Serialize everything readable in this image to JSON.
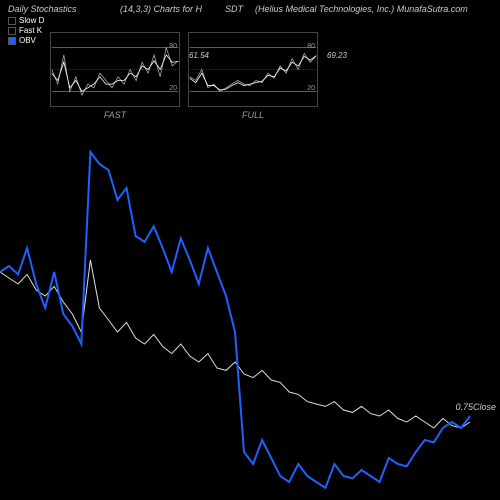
{
  "header": {
    "title_left": "Daily Stochastics",
    "title_mid": "(14,3,3) Charts for H",
    "ticker": "SDT",
    "company": "(Helius Medical Technologies, Inc.) MunafaSutra.com"
  },
  "legend": {
    "slow_d": "Slow D",
    "fast_k": "Fast K",
    "obv": "OBV"
  },
  "colors": {
    "background": "#000000",
    "obv_line": "#2060ff",
    "price_line": "#dddddd",
    "grid": "#555555",
    "stoch_band": "#c09030",
    "text": "#cccccc"
  },
  "mini_fast": {
    "label": "FAST",
    "value": "61.54",
    "ymin": 0,
    "ymax": 100,
    "bands": [
      20,
      80
    ],
    "line1": [
      50,
      30,
      70,
      20,
      40,
      15,
      30,
      25,
      45,
      35,
      25,
      40,
      30,
      50,
      35,
      60,
      45,
      70,
      40,
      80,
      55,
      62
    ],
    "line2": [
      45,
      35,
      60,
      25,
      35,
      20,
      25,
      30,
      40,
      30,
      30,
      35,
      35,
      45,
      40,
      55,
      50,
      62,
      50,
      70,
      60,
      61
    ]
  },
  "mini_full": {
    "label": "FULL",
    "value": "69.23",
    "ymin": 0,
    "ymax": 100,
    "bands": [
      20,
      80
    ],
    "line1": [
      40,
      35,
      50,
      25,
      30,
      20,
      25,
      30,
      35,
      30,
      28,
      35,
      32,
      45,
      38,
      55,
      45,
      65,
      50,
      72,
      60,
      69
    ],
    "line2": [
      38,
      32,
      45,
      28,
      28,
      22,
      23,
      28,
      32,
      28,
      30,
      32,
      34,
      42,
      40,
      52,
      48,
      60,
      55,
      68,
      63,
      69
    ]
  },
  "main": {
    "close_label": "0.75Close",
    "price": [
      230,
      225,
      220,
      228,
      215,
      210,
      218,
      205,
      195,
      180,
      240,
      200,
      190,
      180,
      188,
      175,
      170,
      178,
      168,
      162,
      170,
      160,
      155,
      162,
      150,
      148,
      155,
      145,
      142,
      148,
      140,
      138,
      130,
      128,
      122,
      120,
      118,
      122,
      115,
      113,
      118,
      112,
      110,
      115,
      108,
      105,
      110,
      105,
      100,
      108,
      102,
      100,
      105
    ],
    "obv": [
      230,
      235,
      228,
      250,
      220,
      200,
      230,
      195,
      185,
      170,
      330,
      320,
      315,
      290,
      300,
      260,
      255,
      268,
      250,
      230,
      258,
      240,
      220,
      250,
      230,
      210,
      180,
      80,
      70,
      90,
      75,
      60,
      55,
      70,
      60,
      55,
      50,
      70,
      60,
      58,
      65,
      60,
      55,
      75,
      70,
      68,
      80,
      90,
      88,
      100,
      105,
      100,
      110
    ]
  },
  "typography": {
    "font_size_header": 9,
    "font_size_legend": 8,
    "font_style": "italic"
  }
}
